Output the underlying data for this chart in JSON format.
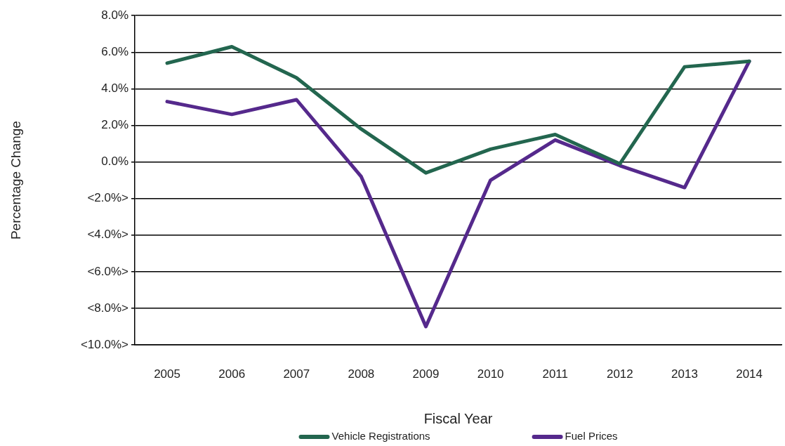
{
  "chart_data": {
    "type": "line",
    "xlabel": "Fiscal Year",
    "ylabel": "Percentage Change",
    "categories": [
      "2005",
      "2006",
      "2007",
      "2008",
      "2009",
      "2010",
      "2011",
      "2012",
      "2013",
      "2014"
    ],
    "series": [
      {
        "name": "Vehicle Registrations",
        "color": "#23664f",
        "values": [
          5.4,
          6.3,
          4.6,
          1.8,
          -0.6,
          0.7,
          1.5,
          -0.1,
          5.2,
          5.5
        ]
      },
      {
        "name": "Fuel Prices",
        "color": "#55298c",
        "values": [
          3.3,
          2.6,
          3.4,
          -0.8,
          -9.0,
          -1.0,
          1.2,
          -0.2,
          -1.4,
          5.5
        ]
      }
    ],
    "ylim": [
      -10,
      8
    ],
    "yticks": [
      {
        "value": 8,
        "label": "8.0%"
      },
      {
        "value": 6,
        "label": "6.0%"
      },
      {
        "value": 4,
        "label": "4.0%"
      },
      {
        "value": 2,
        "label": "2.0%"
      },
      {
        "value": 0,
        "label": "0.0%"
      },
      {
        "value": -2,
        "label": "<2.0%>"
      },
      {
        "value": -4,
        "label": "<4.0%>"
      },
      {
        "value": -6,
        "label": "<6.0%>"
      },
      {
        "value": -8,
        "label": "<8.0%>"
      },
      {
        "value": -10,
        "label": "<10.0%>"
      }
    ],
    "grid": "y",
    "legend": "bottom",
    "marker": "none"
  }
}
